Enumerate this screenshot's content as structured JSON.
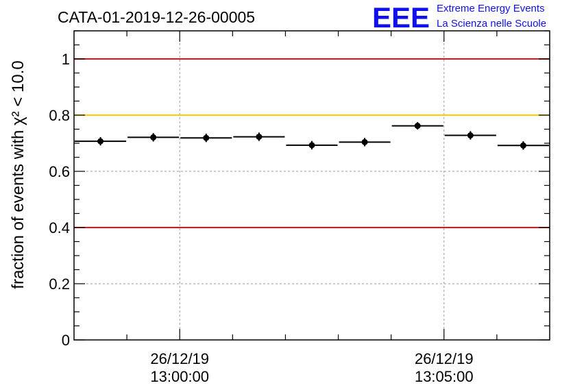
{
  "title": "CATA-01-2019-12-26-00005",
  "logo": {
    "mark": "EEE",
    "line1": "Extreme Energy Events",
    "line2": "La Scienza nelle Scuole",
    "color": "#1010e8"
  },
  "colors": {
    "red_threshold": "#e81010",
    "yellow_threshold": "#ffcc00",
    "grid": "#9a9a9a",
    "markers": "#000000"
  },
  "chart_data": {
    "type": "scatter",
    "title": "CATA-01-2019-12-26-00005",
    "ylabel": "fraction of events with χ² < 10.0",
    "xlabel": "",
    "ylim": [
      0,
      1.1
    ],
    "y_ticks": [
      {
        "value": 0,
        "label": "0"
      },
      {
        "value": 0.2,
        "label": "0.2"
      },
      {
        "value": 0.4,
        "label": "0.4"
      },
      {
        "value": 0.6,
        "label": "0.6"
      },
      {
        "value": 0.8,
        "label": "0.8"
      },
      {
        "value": 1,
        "label": "1"
      }
    ],
    "xlim": [
      "12:58:00",
      "13:07:00"
    ],
    "x_major_ticks": [
      {
        "time": "13:00:00",
        "line1": "26/12/19",
        "line2": "13:00:00"
      },
      {
        "time": "13:05:00",
        "line1": "26/12/19",
        "line2": "13:05:00"
      }
    ],
    "x_minor_ticks": [
      "12:59:00",
      "13:01:00",
      "13:02:00",
      "13:03:00",
      "13:04:00",
      "13:06:00"
    ],
    "grid": true,
    "series": [
      {
        "points": [
          {
            "x_start": "12:58:00",
            "x_end": "12:59:00",
            "y": 0.707,
            "err": 0.015
          },
          {
            "x_start": "12:59:00",
            "x_end": "13:00:00",
            "y": 0.721,
            "err": 0.015
          },
          {
            "x_start": "13:00:00",
            "x_end": "13:01:00",
            "y": 0.719,
            "err": 0.015
          },
          {
            "x_start": "13:01:00",
            "x_end": "13:02:00",
            "y": 0.723,
            "err": 0.015
          },
          {
            "x_start": "13:02:00",
            "x_end": "13:03:00",
            "y": 0.693,
            "err": 0.015
          },
          {
            "x_start": "13:03:00",
            "x_end": "13:04:00",
            "y": 0.704,
            "err": 0.015
          },
          {
            "x_start": "13:04:00",
            "x_end": "13:05:00",
            "y": 0.762,
            "err": 0.013
          },
          {
            "x_start": "13:05:00",
            "x_end": "13:06:00",
            "y": 0.728,
            "err": 0.015
          },
          {
            "x_start": "13:06:00",
            "x_end": "13:07:00",
            "y": 0.692,
            "err": 0.015
          }
        ]
      }
    ],
    "reference_lines": [
      {
        "y": 1.0,
        "color": "#e81010"
      },
      {
        "y": 0.8,
        "color": "#ffcc00"
      },
      {
        "y": 0.4,
        "color": "#e81010"
      }
    ]
  }
}
